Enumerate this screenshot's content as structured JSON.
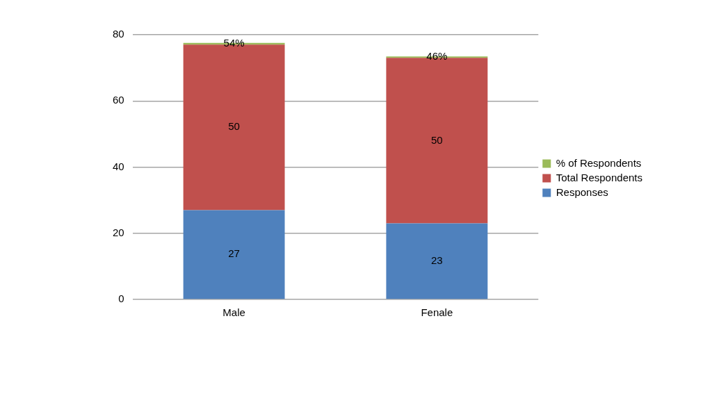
{
  "chart_data": {
    "type": "bar",
    "categories": [
      "Male",
      "Fenale"
    ],
    "series": [
      {
        "name": "Responses",
        "color": "#4f81bd",
        "values": [
          27,
          23
        ]
      },
      {
        "name": "Total Respondents",
        "color": "#c0504d",
        "values": [
          50,
          50
        ]
      },
      {
        "name": "% of Respondents",
        "color": "#9bbb59",
        "values": [
          0.54,
          0.46
        ],
        "value_labels": [
          "54%",
          "46%"
        ]
      }
    ],
    "stacked": true,
    "data_labels": true,
    "ylim": [
      0,
      80
    ],
    "yticks": [
      0,
      20,
      40,
      60,
      80
    ],
    "grid": true,
    "legend": "right"
  }
}
